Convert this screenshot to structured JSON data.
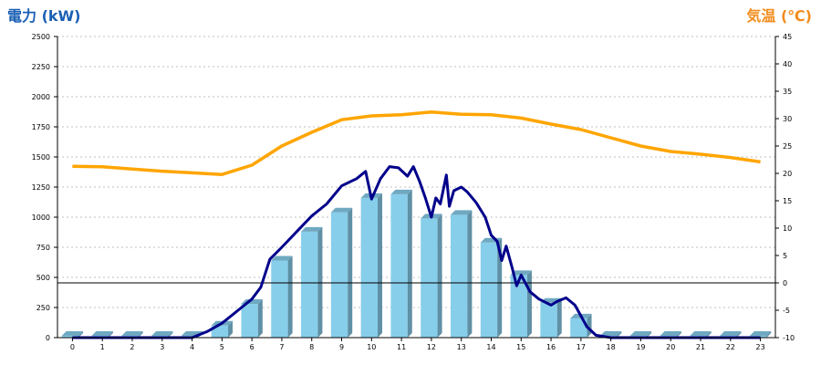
{
  "chart_data": {
    "type": "bar",
    "title": "",
    "xlabel": "",
    "categories": [
      "0",
      "1",
      "2",
      "3",
      "4",
      "5",
      "6",
      "7",
      "8",
      "9",
      "10",
      "11",
      "12",
      "13",
      "14",
      "15",
      "16",
      "17",
      "18",
      "19",
      "20",
      "21",
      "22",
      "23"
    ],
    "ylabel_left": "電力 (kW)",
    "ylabel_right": "気温 (℃)",
    "ylim_left": [
      0,
      2500
    ],
    "yticks_left": [
      "0",
      "250",
      "500",
      "750",
      "1000",
      "1250",
      "1500",
      "1750",
      "2000",
      "2250",
      "2500"
    ],
    "ylim_right": [
      -10,
      45
    ],
    "yticks_right": [
      "-10",
      "-5",
      "0",
      "5",
      "10",
      "15",
      "20",
      "25",
      "30",
      "35",
      "40",
      "45"
    ],
    "grid": true,
    "reference_line": 0,
    "series": [
      {
        "kind": "bar",
        "axis": "left",
        "color": "#87ceeb",
        "values": [
          15,
          15,
          15,
          15,
          15,
          100,
          280,
          640,
          880,
          1040,
          1160,
          1190,
          990,
          1020,
          790,
          520,
          290,
          160,
          15,
          15,
          15,
          15,
          15,
          15
        ]
      },
      {
        "kind": "line",
        "axis": "left",
        "color": "#00008b",
        "x": [
          0,
          1,
          2,
          3,
          4,
          4.5,
          5,
          5.5,
          6,
          6.3,
          6.6,
          7,
          7.5,
          8,
          8.5,
          9,
          9.5,
          9.8,
          10,
          10.3,
          10.6,
          10.9,
          11.2,
          11.4,
          11.6,
          11.8,
          12,
          12.15,
          12.3,
          12.5,
          12.6,
          12.75,
          13,
          13.2,
          13.5,
          13.8,
          14,
          14.2,
          14.35,
          14.5,
          14.7,
          14.85,
          15,
          15.3,
          15.6,
          16,
          16.2,
          16.5,
          16.8,
          17.2,
          17.5,
          18,
          19,
          20,
          21,
          22,
          23
        ],
        "values": [
          0,
          0,
          0,
          0,
          0,
          50,
          120,
          220,
          320,
          420,
          650,
          750,
          880,
          1010,
          1110,
          1260,
          1320,
          1380,
          1150,
          1320,
          1420,
          1410,
          1340,
          1420,
          1300,
          1160,
          1000,
          1160,
          1110,
          1350,
          1090,
          1220,
          1250,
          1210,
          1120,
          1000,
          850,
          800,
          640,
          760,
          580,
          430,
          520,
          380,
          320,
          270,
          300,
          330,
          270,
          90,
          20,
          0,
          0,
          0,
          0,
          0,
          0
        ]
      },
      {
        "kind": "line",
        "axis": "right",
        "color": "#ffa500",
        "values": [
          21.3,
          21.2,
          20.8,
          20.4,
          20.1,
          19.8,
          21.5,
          25,
          27.5,
          29.8,
          30.5,
          30.7,
          31.2,
          30.8,
          30.7,
          30.1,
          29,
          28,
          26.5,
          25,
          24,
          23.5,
          22.9,
          22.1
        ]
      }
    ]
  }
}
